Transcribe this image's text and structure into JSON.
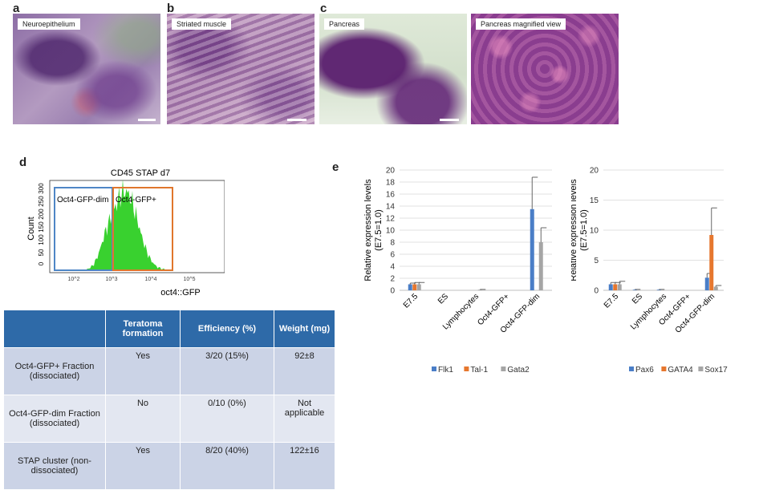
{
  "panels": {
    "a": {
      "letter": "a",
      "label": "Neuroepithelium"
    },
    "b": {
      "letter": "b",
      "label": "Striated muscle"
    },
    "c": {
      "letter": "c",
      "label": "Pancreas",
      "label2": "Pancreas magnified view"
    },
    "d": {
      "letter": "d"
    },
    "e": {
      "letter": "e"
    }
  },
  "flow": {
    "title": "CD45 STAP d7",
    "ylabel": "Count",
    "xlabel": "oct4::GFP",
    "yticks": [
      "0",
      "50",
      "100",
      "150",
      "200",
      "250",
      "300"
    ],
    "xticks": [
      "10^2",
      "10^3",
      "10^4",
      "10^5"
    ],
    "gate_dim": "Oct4-GFP-dim",
    "gate_pos": "Oct4-GFP+",
    "gate_dim_color": "#4f86c6",
    "gate_pos_color": "#e0762c",
    "histogram_color": "#39d12f"
  },
  "table": {
    "headers": [
      "",
      "Teratoma formation",
      "Efficiency (%)",
      "Weight  (mg)"
    ],
    "rows": [
      [
        "Oct4-GFP+ Fraction (dissociated)",
        "Yes",
        "3/20 (15%)",
        "92±8"
      ],
      [
        "Oct4-GFP-dim Fraction (dissociated)",
        "No",
        "0/10 (0%)",
        "Not applicable"
      ],
      [
        "STAP cluster (non-dissociated)",
        "Yes",
        "8/20 (40%)",
        "122±16"
      ]
    ],
    "header_color": "#2e6aa8",
    "row_colors": [
      "#cbd3e6",
      "#e3e7f1"
    ]
  },
  "chart_data": [
    {
      "type": "bar",
      "ylabel": "Relative expression levels (E7.5=1.0)",
      "categories": [
        "E7.5",
        "ES",
        "Lymphocytes",
        "Oct4-GFP+",
        "Oct4-GFP-dim"
      ],
      "ylim": [
        0,
        20
      ],
      "yticks": [
        0,
        2,
        4,
        6,
        8,
        10,
        12,
        14,
        16,
        18,
        20
      ],
      "grid": true,
      "legend": "bottom",
      "series": [
        {
          "name": "Flk1",
          "color": "#4a7ec7",
          "values": [
            1.0,
            0.0,
            0.0,
            0.0,
            13.5
          ],
          "errors": [
            0.2,
            0.0,
            0.0,
            0.0,
            5.3
          ]
        },
        {
          "name": "Tal-1",
          "color": "#e6772e",
          "values": [
            1.0,
            0.0,
            0.0,
            0.0,
            0.0
          ],
          "errors": [
            0.3,
            0.0,
            0.0,
            0.0,
            0.0
          ]
        },
        {
          "name": "Gata2",
          "color": "#a5a5a5",
          "values": [
            1.0,
            0.0,
            0.1,
            0.0,
            8.0
          ],
          "errors": [
            0.3,
            0.0,
            0.05,
            0.0,
            2.4
          ]
        }
      ]
    },
    {
      "type": "bar",
      "ylabel": "Relative expression levels (E7.5=1.0)",
      "categories": [
        "E7.5",
        "ES",
        "Lymphocytes",
        "Oct4-GFP+",
        "Oct4-GFP-dim"
      ],
      "ylim": [
        0,
        20
      ],
      "yticks": [
        0,
        5,
        10,
        15,
        20
      ],
      "grid": true,
      "legend": "bottom",
      "series": [
        {
          "name": "Pax6",
          "color": "#4a7ec7",
          "values": [
            1.0,
            0.1,
            0.1,
            0.0,
            2.1
          ],
          "errors": [
            0.3,
            0.05,
            0.05,
            0.0,
            0.7
          ]
        },
        {
          "name": "GATA4",
          "color": "#e6772e",
          "values": [
            1.0,
            0.0,
            0.0,
            0.0,
            9.2
          ],
          "errors": [
            0.3,
            0.0,
            0.0,
            0.0,
            4.5
          ]
        },
        {
          "name": "Sox17",
          "color": "#a5a5a5",
          "values": [
            1.0,
            0.0,
            0.0,
            0.0,
            0.6
          ],
          "errors": [
            0.5,
            0.0,
            0.0,
            0.0,
            0.2
          ]
        }
      ]
    }
  ]
}
